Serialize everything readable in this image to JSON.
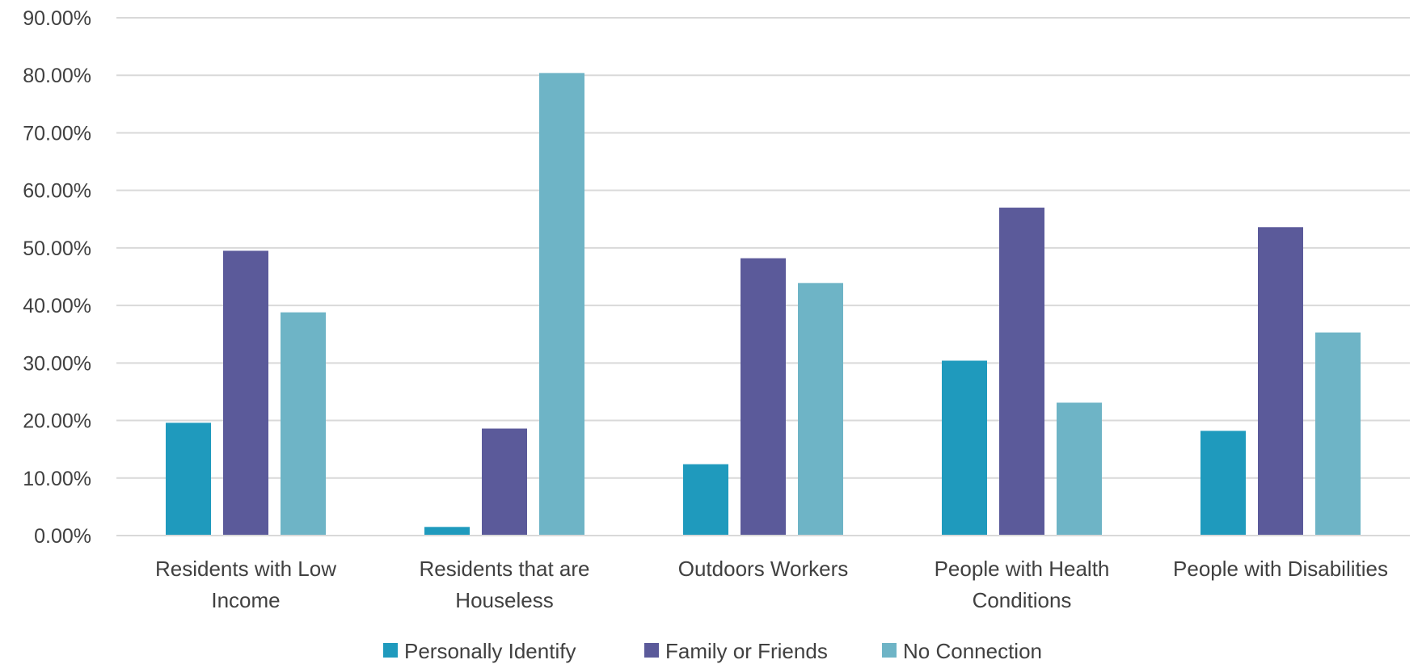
{
  "chart_data": {
    "type": "bar",
    "categories": [
      [
        "Residents with Low",
        "Income"
      ],
      [
        "Residents that are",
        "Houseless"
      ],
      [
        "Outdoors Workers"
      ],
      [
        "People with Health",
        "Conditions"
      ],
      [
        "People with Disabilities"
      ]
    ],
    "series": [
      {
        "name": "Personally Identify",
        "color": "#1f9abd",
        "values": [
          19.6,
          1.5,
          12.4,
          30.4,
          18.2
        ]
      },
      {
        "name": "Family or Friends",
        "color": "#5b5a9a",
        "values": [
          49.5,
          18.6,
          48.2,
          57.0,
          53.6
        ]
      },
      {
        "name": "No Connection",
        "color": "#6eb4c6",
        "values": [
          38.8,
          80.4,
          43.9,
          23.1,
          35.3
        ]
      }
    ],
    "y_ticks": [
      "0.00%",
      "10.00%",
      "20.00%",
      "30.00%",
      "40.00%",
      "50.00%",
      "60.00%",
      "70.00%",
      "80.00%",
      "90.00%"
    ],
    "ylim": [
      0,
      90
    ],
    "title": "",
    "xlabel": "",
    "ylabel": "",
    "grid": true,
    "legend_position": "bottom"
  }
}
